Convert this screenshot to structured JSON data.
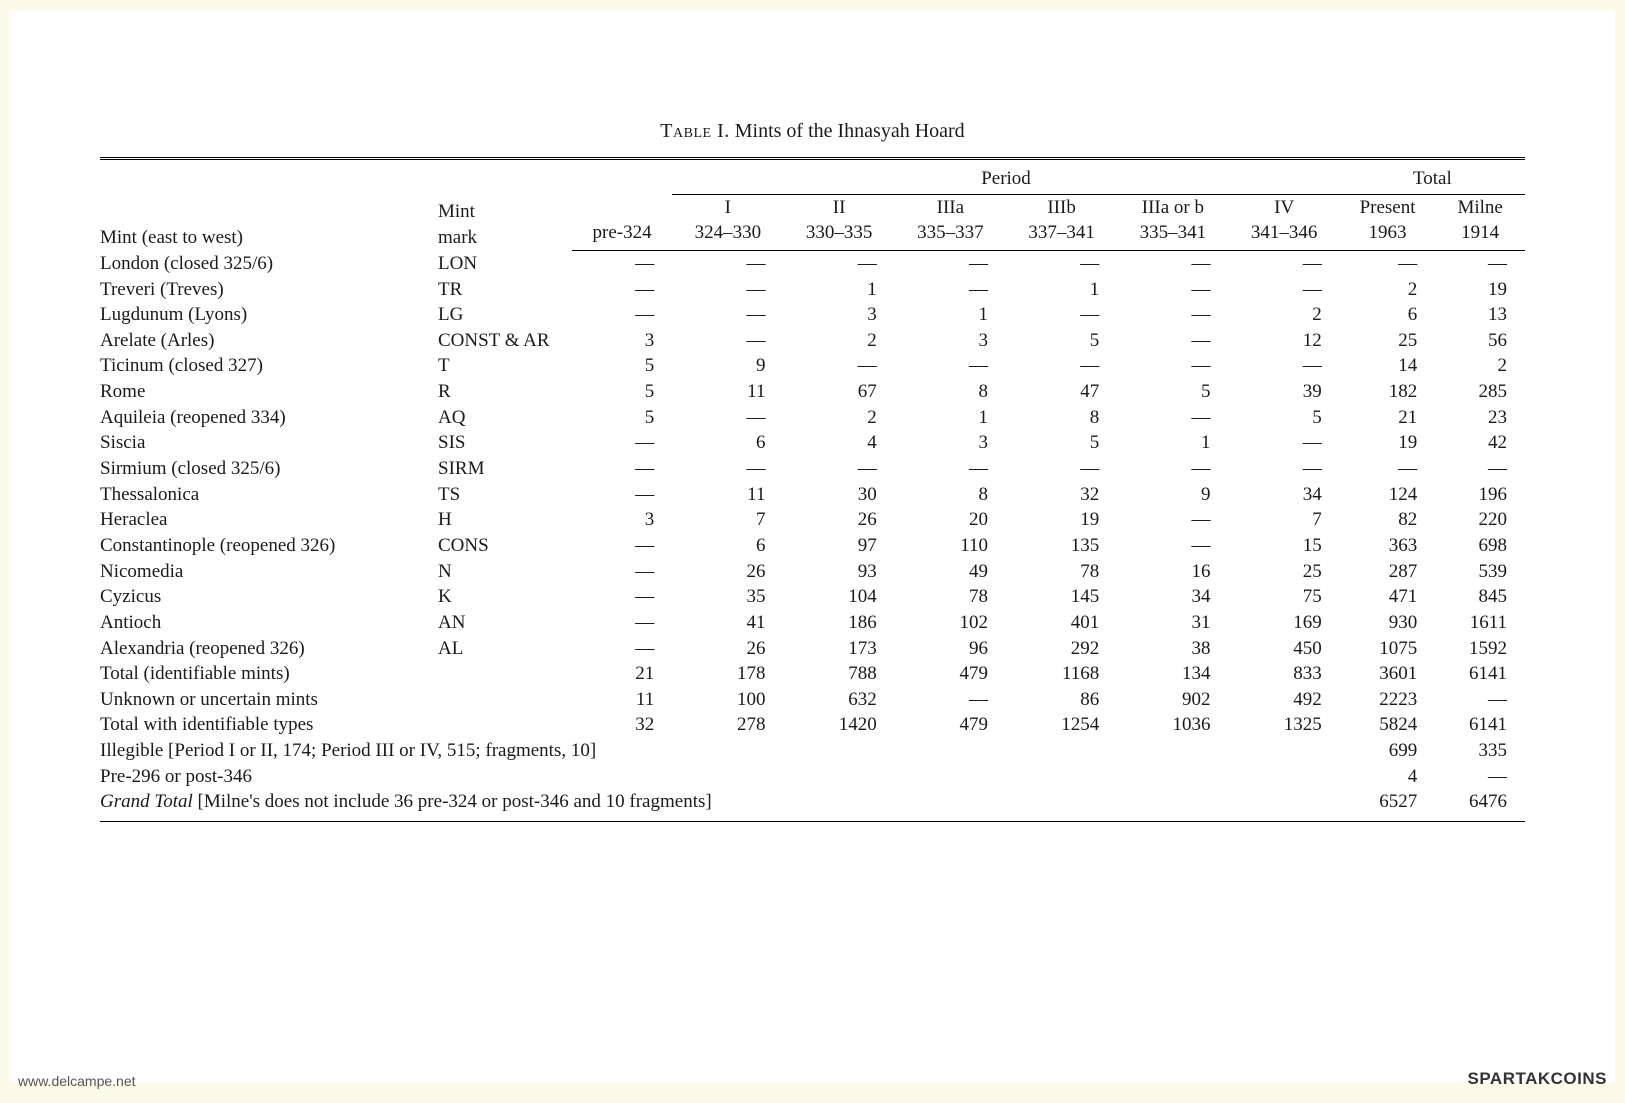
{
  "caption_prefix": "Table I.",
  "caption_rest": " Mints of the Ihnasyah Hoard",
  "group_period": "Period",
  "group_total": "Total",
  "col_mint": "Mint (east to west)",
  "col_mark": "Mint mark",
  "periods": {
    "p0": {
      "name": "",
      "range": "pre-324"
    },
    "p1": {
      "name": "I",
      "range": "324–330"
    },
    "p2": {
      "name": "II",
      "range": "330–335"
    },
    "p3": {
      "name": "IIIa",
      "range": "335–337"
    },
    "p4": {
      "name": "IIIb",
      "range": "337–341"
    },
    "p5": {
      "name": "IIIa or b",
      "range": "335–341"
    },
    "p6": {
      "name": "IV",
      "range": "341–346"
    }
  },
  "tot1_a": "Present",
  "tot1_b": "1963",
  "tot2_a": "Milne",
  "tot2_b": "1914",
  "dash": "—",
  "rows": [
    {
      "mint": "London (closed 325/6)",
      "mark": "LON",
      "v": [
        "—",
        "—",
        "—",
        "—",
        "—",
        "—",
        "—"
      ],
      "t": [
        "—",
        "—"
      ]
    },
    {
      "mint": "Treveri (Treves)",
      "mark": "TR",
      "v": [
        "—",
        "—",
        "1",
        "—",
        "1",
        "—",
        "—"
      ],
      "t": [
        "2",
        "19"
      ]
    },
    {
      "mint": "Lugdunum (Lyons)",
      "mark": "LG",
      "v": [
        "—",
        "—",
        "3",
        "1",
        "—",
        "—",
        "2"
      ],
      "t": [
        "6",
        "13"
      ]
    },
    {
      "mint": "Arelate (Arles)",
      "mark": "CONST & AR",
      "v": [
        "3",
        "—",
        "2",
        "3",
        "5",
        "—",
        "12"
      ],
      "t": [
        "25",
        "56"
      ]
    },
    {
      "mint": "Ticinum (closed 327)",
      "mark": "T",
      "v": [
        "5",
        "9",
        "—",
        "—",
        "—",
        "—",
        "—"
      ],
      "t": [
        "14",
        "2"
      ]
    },
    {
      "mint": "Rome",
      "mark": "R",
      "v": [
        "5",
        "11",
        "67",
        "8",
        "47",
        "5",
        "39"
      ],
      "t": [
        "182",
        "285"
      ]
    },
    {
      "mint": "Aquileia (reopened 334)",
      "mark": "AQ",
      "v": [
        "5",
        "—",
        "2",
        "1",
        "8",
        "—",
        "5"
      ],
      "t": [
        "21",
        "23"
      ]
    },
    {
      "mint": "Siscia",
      "mark": "SIS",
      "v": [
        "—",
        "6",
        "4",
        "3",
        "5",
        "1",
        "—"
      ],
      "t": [
        "19",
        "42"
      ]
    },
    {
      "mint": "Sirmium (closed 325/6)",
      "mark": "SIRM",
      "v": [
        "—",
        "—",
        "—",
        "—",
        "—",
        "—",
        "—"
      ],
      "t": [
        "—",
        "—"
      ]
    },
    {
      "mint": "Thessalonica",
      "mark": "TS",
      "v": [
        "—",
        "11",
        "30",
        "8",
        "32",
        "9",
        "34"
      ],
      "t": [
        "124",
        "196"
      ]
    },
    {
      "mint": "Heraclea",
      "mark": "H",
      "v": [
        "3",
        "7",
        "26",
        "20",
        "19",
        "—",
        "7"
      ],
      "t": [
        "82",
        "220"
      ]
    },
    {
      "mint": "Constantinople (reopened 326)",
      "mark": "CONS",
      "v": [
        "—",
        "6",
        "97",
        "110",
        "135",
        "—",
        "15"
      ],
      "t": [
        "363",
        "698"
      ]
    },
    {
      "mint": "Nicomedia",
      "mark": "N",
      "v": [
        "—",
        "26",
        "93",
        "49",
        "78",
        "16",
        "25"
      ],
      "t": [
        "287",
        "539"
      ]
    },
    {
      "mint": "Cyzicus",
      "mark": "K",
      "v": [
        "—",
        "35",
        "104",
        "78",
        "145",
        "34",
        "75"
      ],
      "t": [
        "471",
        "845"
      ]
    },
    {
      "mint": "Antioch",
      "mark": "AN",
      "v": [
        "—",
        "41",
        "186",
        "102",
        "401",
        "31",
        "169"
      ],
      "t": [
        "930",
        "1611"
      ]
    },
    {
      "mint": "Alexandria (reopened 326)",
      "mark": "AL",
      "v": [
        "—",
        "26",
        "173",
        "96",
        "292",
        "38",
        "450"
      ],
      "t": [
        "1075",
        "1592"
      ]
    },
    {
      "mint": "Total (identifiable mints)",
      "mark": "",
      "indent": true,
      "v": [
        "21",
        "178",
        "788",
        "479",
        "1168",
        "134",
        "833"
      ],
      "t": [
        "3601",
        "6141"
      ]
    },
    {
      "mint": "Unknown or uncertain mints",
      "mark": "",
      "indent": true,
      "v": [
        "11",
        "100",
        "632",
        "—",
        "86",
        "902",
        "492"
      ],
      "t": [
        "2223",
        "—"
      ]
    },
    {
      "mint": "Total with identifiable types",
      "mark": "",
      "indent": true,
      "v": [
        "32",
        "278",
        "1420",
        "479",
        "1254",
        "1036",
        "1325"
      ],
      "t": [
        "5824",
        "6141"
      ]
    }
  ],
  "illegible_label": "Illegible [Period I or II, 174; Period III or IV, 515; fragments, 10]",
  "illegible_t": [
    "699",
    "335"
  ],
  "pre296_label": "Pre-296 or post-346",
  "pre296_t": [
    "4",
    "—"
  ],
  "grand_prefix": "Grand Total",
  "grand_rest": " [Milne's does not include 36 pre-324 or post-346 and 10 fragments]",
  "grand_t": [
    "6527",
    "6476"
  ],
  "footer_left": "www.delcampe.net",
  "footer_right": "SPARTAKCOINS"
}
